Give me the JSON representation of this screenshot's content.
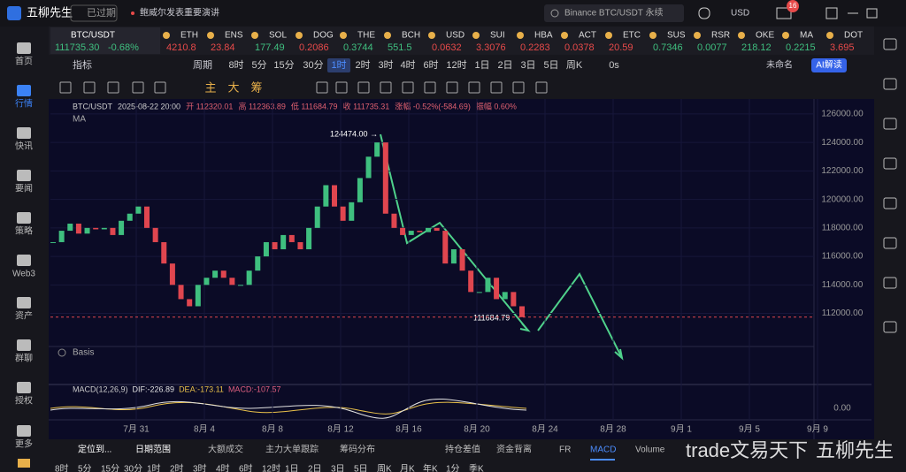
{
  "header": {
    "logo": "五柳先生",
    "status": "已过期",
    "news": "鲍威尔发表重要演讲",
    "search": "Binance BTC/USDT 永续",
    "currency": "USD",
    "badge": "16"
  },
  "sidebar": [
    "首页",
    "行情",
    "快讯",
    "要闻",
    "策略",
    "Web3",
    "资产",
    "群聊",
    "授权",
    "更多"
  ],
  "ticker": {
    "symbol": "BTC/USDT",
    "price": "111735.30",
    "change": "-0.68%",
    "items": [
      {
        "name": "ETH",
        "price": "4210.8",
        "color": "#e84a4a"
      },
      {
        "name": "ENS",
        "price": "23.84",
        "color": "#e84a4a"
      },
      {
        "name": "SOL",
        "price": "177.49",
        "color": "#3fbf7f"
      },
      {
        "name": "DOG",
        "price": "0.2086",
        "color": "#e84a4a"
      },
      {
        "name": "THE",
        "price": "0.3744",
        "color": "#3fbf7f"
      },
      {
        "name": "BCH",
        "price": "551.5",
        "color": "#3fbf7f"
      },
      {
        "name": "USD",
        "price": "0.0632",
        "color": "#e84a4a"
      },
      {
        "name": "SUI",
        "price": "3.3076",
        "color": "#e84a4a"
      },
      {
        "name": "HBA",
        "price": "0.2283",
        "color": "#e84a4a"
      },
      {
        "name": "ACT",
        "price": "0.0378",
        "color": "#e84a4a"
      },
      {
        "name": "ETC",
        "price": "20.59",
        "color": "#e84a4a"
      },
      {
        "name": "SUS",
        "price": "0.7346",
        "color": "#3fbf7f"
      },
      {
        "name": "RSR",
        "price": "0.0077",
        "color": "#3fbf7f"
      },
      {
        "name": "OKE",
        "price": "218.12",
        "color": "#3fbf7f"
      },
      {
        "name": "MA",
        "price": "0.2215",
        "color": "#3fbf7f"
      },
      {
        "name": "DOT",
        "price": "3.695",
        "color": "#e84a4a"
      }
    ]
  },
  "toolbar": {
    "indicator": "指标",
    "period": "周期",
    "intervals": [
      {
        "label": "8时"
      },
      {
        "label": "5分"
      },
      {
        "label": "15分"
      },
      {
        "label": "30分"
      },
      {
        "label": "1时",
        "active": true
      },
      {
        "label": "2时"
      },
      {
        "label": "3时"
      },
      {
        "label": "4时"
      },
      {
        "label": "6时"
      },
      {
        "label": "12时"
      },
      {
        "label": "1日"
      },
      {
        "label": "2日"
      },
      {
        "label": "3日"
      },
      {
        "label": "5日"
      },
      {
        "label": "周K"
      },
      {
        "label": "0s"
      }
    ],
    "layout_name": "未命名",
    "ai": "AI解读"
  },
  "drawing_tools": [
    "主",
    "大",
    "筹"
  ],
  "chart": {
    "info": [
      "BTC/USDT",
      "2025-08-22 20:00",
      "开 112320.01",
      "高 112363.89",
      "低 111684.79",
      "收 111735.31",
      "涨幅 -0.52%(-584.69)",
      "振幅 0.60%"
    ],
    "ma": "MA",
    "ylim": [
      109800,
      127050
    ],
    "yticks": [
      {
        "value": 112000,
        "label": "112000.00"
      },
      {
        "value": 114000,
        "label": "114000.00"
      },
      {
        "value": 116000,
        "label": "116000.00"
      },
      {
        "value": 118000,
        "label": "118000.00"
      },
      {
        "value": 120000,
        "label": "120000.00"
      },
      {
        "value": 122000,
        "label": "122000.00"
      },
      {
        "value": 124000,
        "label": "124000.00"
      },
      {
        "value": 126000,
        "label": "126000.00"
      }
    ],
    "xticks": [
      "7月 31",
      "8月 4",
      "8月 8",
      "8月 12",
      "8月 16",
      "8月 20",
      "8月 24",
      "8月 28",
      "9月 1",
      "9月 5",
      "9月 9"
    ],
    "closes": [
      117000,
      117800,
      118300,
      117600,
      118000,
      117900,
      118000,
      117500,
      118500,
      119000,
      119500,
      118000,
      117000,
      115500,
      114000,
      113000,
      112500,
      114000,
      114500,
      115000,
      114500,
      114000,
      114000,
      115000,
      116000,
      117000,
      116500,
      117500,
      117000,
      116500,
      118000,
      119500,
      121000,
      119500,
      118500,
      119800,
      121500,
      123000,
      124000,
      119000,
      118000,
      117500,
      117800,
      117700,
      118000,
      117800,
      115500,
      116500,
      115000,
      113500,
      113500,
      114500,
      113000,
      113500,
      112500,
      111735
    ],
    "last_price": 111735.31,
    "up_color": "#3fbf7f",
    "down_color": "#e0464f",
    "high_label": "124474.00 →",
    "low_label": "111684.79",
    "basis": "Basis"
  },
  "macd": {
    "label": "MACD(12,26,9)",
    "dif": "DIF:-226.89",
    "dea": "DEA:-173.11",
    "macd": "MACD:-107.57",
    "tick": "0.00"
  },
  "bottom_tabs": [
    {
      "label": "定位到..."
    },
    {
      "label": "日期范围"
    },
    {
      "label": "大额成交"
    },
    {
      "label": "主力大单跟踪"
    },
    {
      "label": "筹码分布"
    },
    {
      "label": "持仓差值"
    },
    {
      "label": "资金背离"
    },
    {
      "label": "FR"
    },
    {
      "label": "MACD",
      "active": true
    },
    {
      "label": "Volume"
    }
  ],
  "watermark": [
    "trade文易天下",
    "五柳先生"
  ],
  "periods_row": [
    "8时",
    "5分",
    "15分",
    "30分",
    "1时",
    "2时",
    "3时",
    "4时",
    "6时",
    "12时",
    "1日",
    "2日",
    "3日",
    "5日",
    "周K",
    "月K",
    "年K",
    "1分",
    "季K"
  ]
}
